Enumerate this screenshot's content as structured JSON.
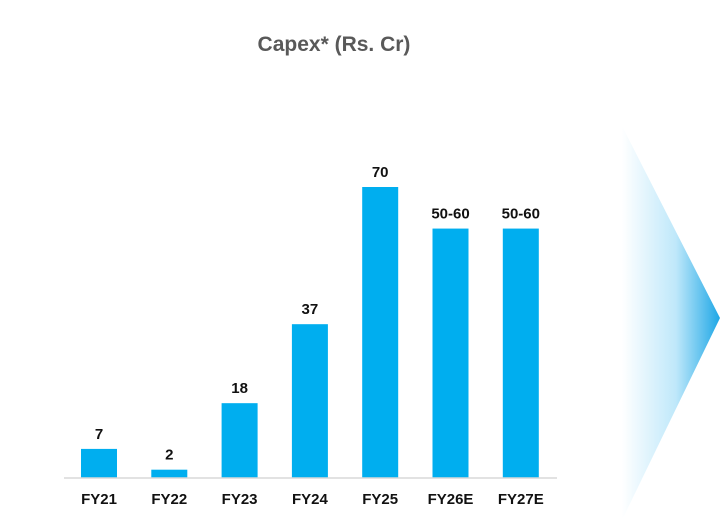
{
  "chart_data": {
    "type": "bar",
    "title": "Capex* (Rs. Cr)",
    "categories": [
      "FY21",
      "FY22",
      "FY23",
      "FY24",
      "FY25",
      "FY26E",
      "FY27E"
    ],
    "values": [
      7,
      2,
      18,
      37,
      70,
      60,
      60
    ],
    "data_labels": [
      "7",
      "2",
      "18",
      "37",
      "70",
      "50-60",
      "50-60"
    ],
    "ylim": [
      0,
      70
    ],
    "grid": false,
    "legend": "none",
    "bar_color": "#00AEEF",
    "accent_arrow_color": "#1EA7E6"
  }
}
